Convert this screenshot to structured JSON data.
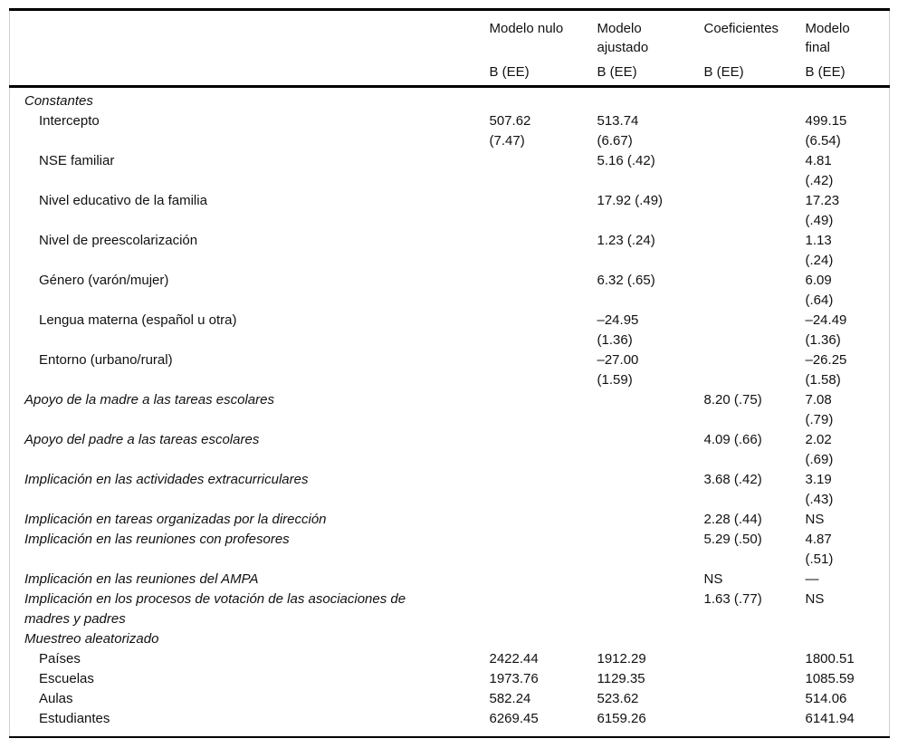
{
  "table": {
    "header": {
      "columns": [
        "",
        "Modelo nulo",
        "Modelo\najustado",
        "Coeficientes",
        "Modelo\nfinal"
      ],
      "subheaders": [
        "",
        "B (EE)",
        "B (EE)",
        "B (EE)",
        "B (EE)"
      ]
    },
    "rows": [
      {
        "label": "Constantes",
        "indent": "section",
        "italic": true,
        "cells": [
          "",
          "",
          "",
          ""
        ]
      },
      {
        "label": "Intercepto",
        "indent": "sub",
        "italic": false,
        "cells": [
          "507.62\n(7.47)",
          "513.74\n(6.67)",
          "",
          "499.15\n(6.54)"
        ]
      },
      {
        "label": "NSE familiar",
        "indent": "sub",
        "italic": false,
        "cells": [
          "",
          "5.16 (.42)",
          "",
          "4.81\n(.42)"
        ]
      },
      {
        "label": "Nivel educativo de la familia",
        "indent": "sub",
        "italic": false,
        "cells": [
          "",
          "17.92 (.49)",
          "",
          "17.23\n(.49)"
        ]
      },
      {
        "label": "Nivel de preescolarización",
        "indent": "sub",
        "italic": false,
        "cells": [
          "",
          "1.23 (.24)",
          "",
          "1.13\n(.24)"
        ]
      },
      {
        "label": "Género (varón/mujer)",
        "indent": "sub",
        "italic": false,
        "cells": [
          "",
          "6.32 (.65)",
          "",
          "6.09\n(.64)"
        ]
      },
      {
        "label": "Lengua materna (español u otra)",
        "indent": "sub",
        "italic": false,
        "cells": [
          "",
          "–24.95\n(1.36)",
          "",
          "–24.49\n(1.36)"
        ]
      },
      {
        "label": "Entorno (urbano/rural)",
        "indent": "sub",
        "italic": false,
        "cells": [
          "",
          "–27.00\n(1.59)",
          "",
          "–26.25\n(1.58)"
        ]
      },
      {
        "label": "Apoyo de la madre a las tareas escolares",
        "indent": "section",
        "italic": true,
        "cells": [
          "",
          "",
          "8.20 (.75)",
          "7.08\n(.79)"
        ]
      },
      {
        "label": "Apoyo del padre a las tareas escolares",
        "indent": "section",
        "italic": true,
        "cells": [
          "",
          "",
          "4.09 (.66)",
          "2.02\n(.69)"
        ]
      },
      {
        "label": "Implicación en las actividades extracurriculares",
        "indent": "section",
        "italic": true,
        "cells": [
          "",
          "",
          "3.68 (.42)",
          "3.19\n(.43)"
        ]
      },
      {
        "label": "Implicación en tareas organizadas por la dirección",
        "indent": "section",
        "italic": true,
        "cells": [
          "",
          "",
          "2.28 (.44)",
          "NS"
        ]
      },
      {
        "label": "Implicación en las reuniones con profesores",
        "indent": "section",
        "italic": true,
        "cells": [
          "",
          "",
          "5.29 (.50)",
          "4.87\n(.51)"
        ]
      },
      {
        "label": "Implicación en las reuniones del AMPA",
        "indent": "section",
        "italic": true,
        "cells": [
          "",
          "",
          "NS",
          "—"
        ]
      },
      {
        "label": "Implicación en los procesos de votación de las asociaciones de\nmadres y padres",
        "indent": "section",
        "italic": true,
        "cells": [
          "",
          "",
          "1.63 (.77)",
          "NS"
        ]
      },
      {
        "label": "Muestreo aleatorizado",
        "indent": "section",
        "italic": true,
        "cells": [
          "",
          "",
          "",
          ""
        ]
      },
      {
        "label": "Países",
        "indent": "sub",
        "italic": false,
        "cells": [
          "2422.44",
          "1912.29",
          "",
          "1800.51"
        ]
      },
      {
        "label": "Escuelas",
        "indent": "sub",
        "italic": false,
        "cells": [
          "1973.76",
          "1129.35",
          "",
          "1085.59"
        ]
      },
      {
        "label": "Aulas",
        "indent": "sub",
        "italic": false,
        "cells": [
          "582.24",
          "523.62",
          "",
          "514.06"
        ]
      },
      {
        "label": "Estudiantes",
        "indent": "sub",
        "italic": false,
        "cells": [
          "6269.45",
          "6159.26",
          "",
          "6141.94"
        ]
      }
    ]
  }
}
